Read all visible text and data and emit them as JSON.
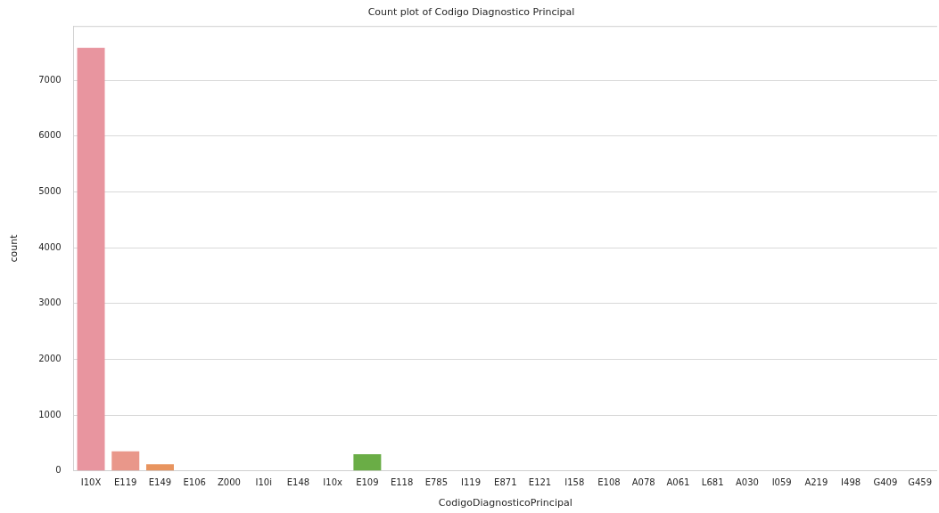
{
  "chart_data": {
    "type": "bar",
    "title": "Count plot of Codigo Diagnostico Principal",
    "xlabel": "CodigoDiagnosticoPrincipal",
    "ylabel": "count",
    "categories": [
      "I10X",
      "E119",
      "E149",
      "E106",
      "Z000",
      "I10i",
      "E148",
      "I10x",
      "E109",
      "E118",
      "E785",
      "I119",
      "E871",
      "E121",
      "I158",
      "E108",
      "A078",
      "A061",
      "L681",
      "A030",
      "I059",
      "A219",
      "I498",
      "G409",
      "G459"
    ],
    "values": [
      7580,
      350,
      120,
      0,
      0,
      0,
      0,
      0,
      300,
      0,
      0,
      0,
      0,
      0,
      0,
      0,
      0,
      0,
      0,
      0,
      0,
      0,
      0,
      0,
      0
    ],
    "colors": [
      "#e8959f",
      "#e9978a",
      "#e8945f",
      "#d19c48",
      "#bda23f",
      "#aaa63c",
      "#96aa3b",
      "#7dad3c",
      "#6aad46",
      "#49b05c",
      "#3bb07d",
      "#3caf93",
      "#3daea4",
      "#3eadb2",
      "#40abc0",
      "#44a8d0",
      "#5aa3e0",
      "#8a9bee",
      "#a992ef",
      "#c089ee",
      "#d583ea",
      "#e27fd9",
      "#e885c6",
      "#e98bb5",
      "#e890a8"
    ],
    "ylim": [
      0,
      7970
    ],
    "yticks": [
      0,
      1000,
      2000,
      3000,
      4000,
      5000,
      6000,
      7000
    ],
    "grid": "y"
  }
}
